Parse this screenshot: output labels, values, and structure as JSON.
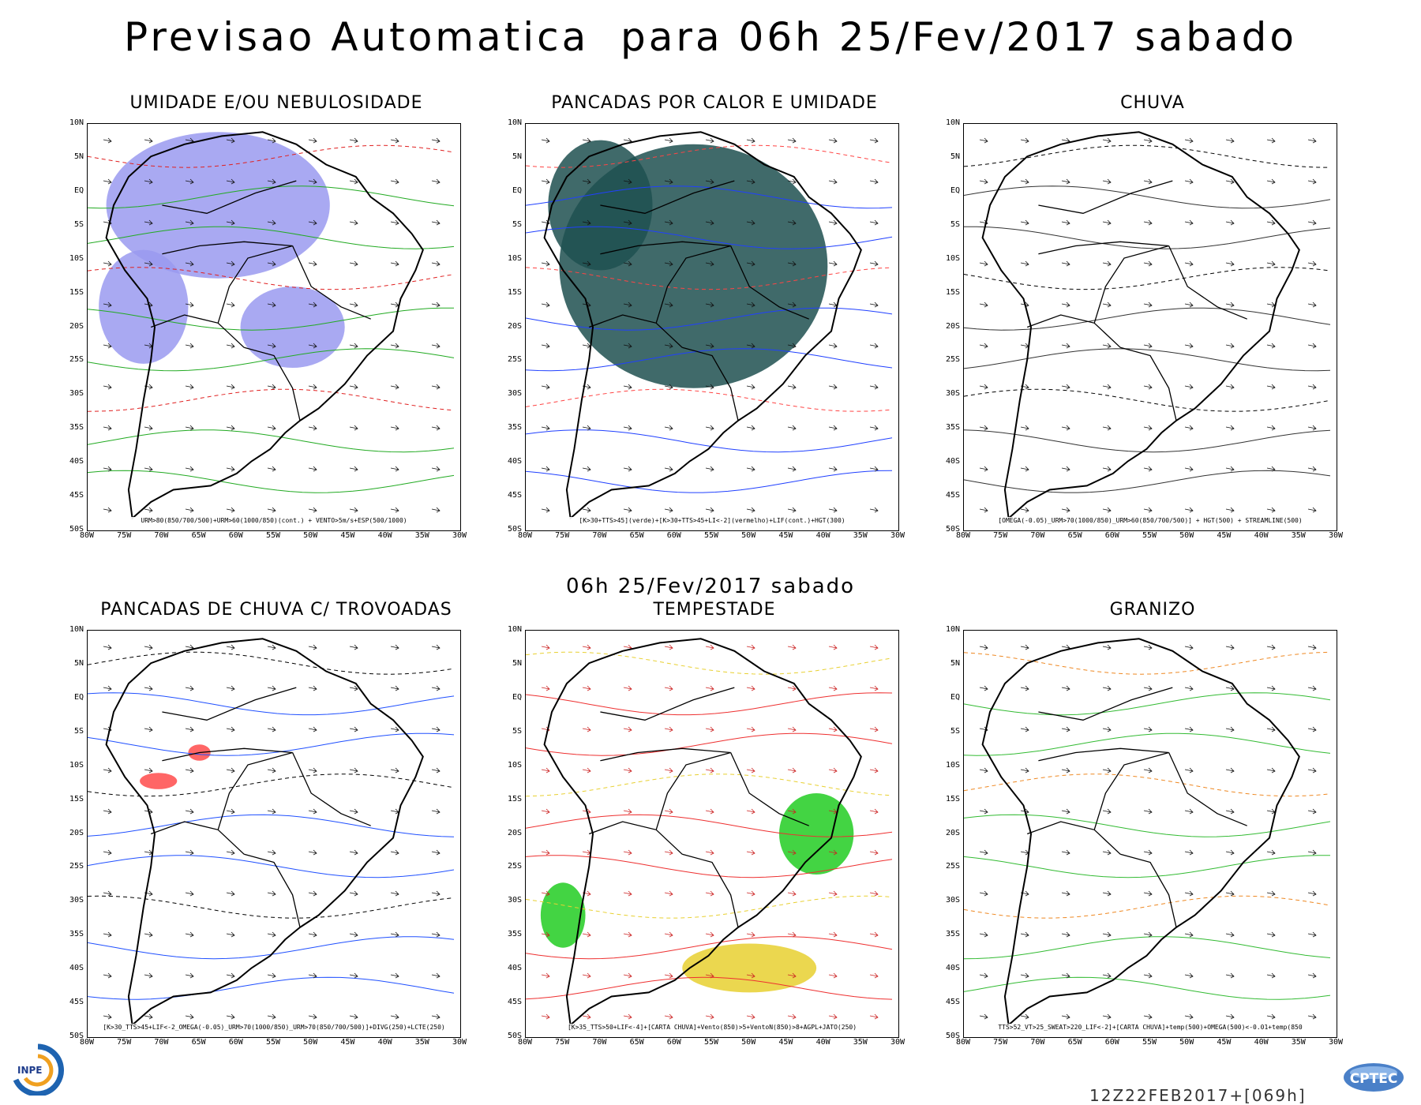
{
  "header": {
    "title": "Previsao Automatica  para 06h 25/Fev/2017 sabado",
    "subtitle": "06h 25/Fev/2017 sabado"
  },
  "axes": {
    "lat_labels": [
      "10N",
      "5N",
      "EQ",
      "5S",
      "10S",
      "15S",
      "20S",
      "25S",
      "30S",
      "35S",
      "40S",
      "45S",
      "50S"
    ],
    "lon_labels": [
      "80W",
      "75W",
      "70W",
      "65W",
      "60W",
      "55W",
      "50W",
      "45W",
      "40W",
      "35W",
      "30W"
    ]
  },
  "panels": [
    {
      "id": "umidade",
      "title": "UMIDADE E/OU NEBULOSIDADE",
      "caption": "URM>80(850/700/500)+URM>60(1000/850)(cont.) + VENTO>5m/s+ESP(500/1000)",
      "colors": {
        "fill": "#9a9af0",
        "contour": "#22aa22",
        "dash": "#e02020"
      }
    },
    {
      "id": "pancadas-calor",
      "title": "PANCADAS POR CALOR E UMIDADE",
      "caption": "[K>30+TTS>45](verde)+[K>30+TTS>45+LI<-2](vermelho)+LIF(cont.)+HGT(300)",
      "colors": {
        "fill": "#1f5050",
        "contour": "#2040ff",
        "dash": "#ff4444"
      }
    },
    {
      "id": "chuva",
      "title": "CHUVA",
      "caption": "[OMEGA(-0.05)_URM>70(1000/850)_URM>60(850/700/500)] + HGT(500) + STREAMLINE(500)",
      "colors": {
        "fill": "#ffffff",
        "contour": "#333333",
        "dash": "#000000"
      }
    },
    {
      "id": "trovoadas",
      "title": "PANCADAS DE CHUVA C/ TROVOADAS",
      "caption": "[K>30_TTS>45+LIF<-2_OMEGA(-0.05)_URM>70(1000/850)_URM>70(850/700/500)]+DIVG(250)+LCTE(250)",
      "colors": {
        "fill": "#ff5555",
        "contour": "#2050ff",
        "dash": "#000000"
      }
    },
    {
      "id": "tempestade",
      "title": "TEMPESTADE",
      "caption": "[K>35_TTS>50+LIF<-4]+[CARTA CHUVA]+Vento(850)>5+VentoN(850)>8+AGPL+JATO(250)",
      "colors": {
        "fill": "#22cc22",
        "contour": "#ee3030",
        "dash": "#e8d030"
      }
    },
    {
      "id": "granizo",
      "title": "GRANIZO",
      "caption": "TTS>52_VT>25_SWEAT>220_LIF<-2]+[CARTA CHUVA]+temp(500)+OMEGA(500)<-0.01+temp(850",
      "colors": {
        "fill": "#ffffff",
        "contour": "#33bb33",
        "dash": "#ee8822"
      }
    }
  ],
  "footer": {
    "run": "12Z22FEB2017+[069h]",
    "logo_left": "INPE",
    "logo_right": "CPTEC"
  }
}
